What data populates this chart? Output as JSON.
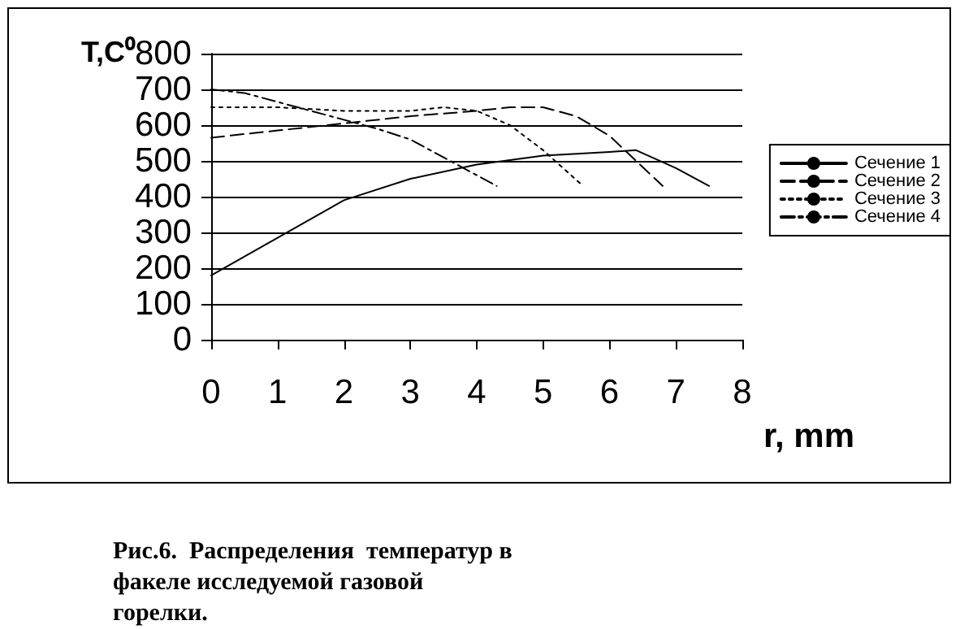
{
  "chart_data": {
    "type": "line",
    "xlabel": "r, mm",
    "ylabel": "T,C⁰",
    "xlim": [
      0,
      8
    ],
    "xticks": [
      0,
      1,
      2,
      3,
      4,
      5,
      6,
      7,
      8
    ],
    "ylim": [
      0,
      800
    ],
    "yticks": [
      0,
      100,
      200,
      300,
      400,
      500,
      600,
      700,
      800
    ],
    "grid": "y",
    "legend": "right",
    "marker": "none",
    "series": [
      {
        "name": "Сечение 1",
        "color": "#000000",
        "line_style": "solid",
        "x": [
          0,
          1,
          2,
          3,
          4,
          5,
          6,
          6.4,
          7,
          7.5
        ],
        "values": [
          180,
          285,
          390,
          450,
          490,
          515,
          525,
          530,
          480,
          430
        ]
      },
      {
        "name": "Сечение 2",
        "color": "#000000",
        "line_style": "dashed",
        "x": [
          0,
          1,
          2,
          3,
          4,
          4.5,
          5,
          5.5,
          6,
          6.4,
          6.8
        ],
        "values": [
          565,
          585,
          605,
          625,
          640,
          650,
          650,
          625,
          570,
          500,
          430
        ]
      },
      {
        "name": "Сечение 3",
        "color": "#000000",
        "line_style": "dotted",
        "x": [
          0,
          1,
          2,
          3,
          3.5,
          4,
          4.5,
          5,
          5.6
        ],
        "values": [
          650,
          650,
          640,
          640,
          650,
          640,
          600,
          530,
          430
        ]
      },
      {
        "name": "Сечение 4",
        "color": "#000000",
        "line_style": "dashdot",
        "x": [
          0,
          0.5,
          1,
          1.5,
          2,
          2.5,
          3,
          3.5,
          4,
          4.3
        ],
        "values": [
          700,
          690,
          665,
          640,
          615,
          590,
          560,
          510,
          460,
          430
        ]
      }
    ],
    "annotations": [
      "Рис.6.  Распределения  температур в факеле исследуемой газовой горелки."
    ]
  }
}
